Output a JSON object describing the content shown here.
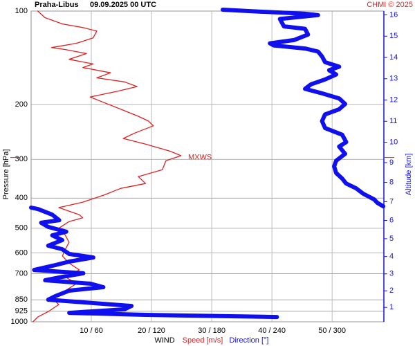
{
  "chart_data": {
    "type": "line",
    "title": "Praha-Libus",
    "subtitle": "09.09.2025 00 UTC",
    "credit": "CHMI © 2025",
    "y_label": "Pressure [hPa]",
    "y2_label": "Altitude [km]",
    "legend_title": "WIND",
    "ylim": [
      1000,
      100
    ],
    "log_y": true,
    "yticks": [
      100,
      200,
      300,
      400,
      500,
      600,
      700,
      850,
      925,
      1000
    ],
    "y2ticks": [
      1,
      2,
      3,
      4,
      5,
      6,
      7,
      8,
      9,
      10,
      11,
      12,
      13,
      14,
      15,
      16
    ],
    "xlim": [
      0,
      58.6
    ],
    "x2lim": [
      0,
      351.6
    ],
    "xticks": [
      {
        "value": 10,
        "label": "10 / 60"
      },
      {
        "value": 20,
        "label": "20 / 120"
      },
      {
        "value": 30,
        "label": "30 / 180"
      },
      {
        "value": 40,
        "label": "40 / 240"
      },
      {
        "value": 50,
        "label": "50 / 300"
      }
    ],
    "grid": true,
    "annotation": {
      "text": "MXWS",
      "pressure": 296
    },
    "series": [
      {
        "name": "Speed [m/s]",
        "color": "#e02020",
        "axis": "x",
        "pressure": [
          100,
          105,
          110,
          113,
          116,
          122,
          127,
          131,
          133,
          137,
          143,
          148,
          152,
          158,
          164,
          169,
          175,
          181,
          189,
          197,
          207,
          218,
          226,
          234,
          247,
          257,
          268,
          282,
          292,
          303,
          324,
          341,
          359,
          372,
          391,
          412,
          429,
          452,
          463,
          476,
          500,
          527,
          555,
          584,
          614,
          647,
          681,
          717,
          754,
          794,
          836,
          880,
          926,
          965,
          1000
        ],
        "values": [
          1.1,
          2.3,
          5.2,
          8.6,
          10.9,
          10.3,
          7.5,
          3.4,
          5.7,
          9.2,
          6.3,
          10.3,
          8.6,
          13.2,
          10.9,
          15.5,
          17.6,
          14.4,
          9.8,
          12.1,
          14.9,
          17.8,
          19.5,
          20.3,
          17.2,
          15.3,
          19.0,
          23.0,
          24.9,
          22.4,
          21.8,
          17.8,
          19.0,
          14.9,
          12.1,
          8.6,
          4.6,
          8.0,
          8.6,
          6.3,
          4.6,
          5.7,
          6.3,
          5.7,
          5.2,
          6.3,
          8.0,
          5.7,
          7.5,
          5.7,
          3.4,
          4.6,
          2.9,
          1.1,
          0.3
        ]
      },
      {
        "name": "Direction [°]",
        "color": "#1010ee",
        "axis": "x2",
        "pressure": [
          99,
          100,
          102,
          103,
          106,
          112,
          114,
          119,
          124,
          127,
          129,
          132,
          135,
          140,
          146,
          151,
          155,
          160,
          166,
          172,
          178,
          184,
          191,
          199,
          207,
          215,
          226,
          238,
          250,
          264,
          273,
          288,
          303,
          316,
          332,
          346,
          359,
          372,
          387,
          404,
          414,
          425,
          428,
          429,
          434,
          452,
          471,
          480,
          495,
          513,
          527,
          546,
          569,
          584,
          605,
          621,
          640,
          657,
          681,
          698,
          717,
          735,
          754,
          774,
          794,
          827,
          849,
          866,
          889,
          912,
          936,
          950,
          965
        ],
        "values": [
          191,
          217,
          273,
          286,
          248,
          252,
          273,
          276,
          262,
          238,
          242,
          273,
          286,
          290,
          293,
          307,
          297,
          304,
          293,
          279,
          273,
          290,
          307,
          313,
          307,
          293,
          290,
          293,
          310,
          314,
          307,
          313,
          304,
          302,
          304,
          310,
          314,
          324,
          331,
          342,
          345,
          351,
          null,
          0,
          7,
          21,
          28,
          10,
          17,
          35,
          21,
          31,
          17,
          31,
          38,
          62,
          38,
          24,
          3,
          52,
          31,
          14,
          59,
          72,
          38,
          24,
          17,
          52,
          100,
          93,
          38,
          114,
          245
        ]
      }
    ]
  }
}
